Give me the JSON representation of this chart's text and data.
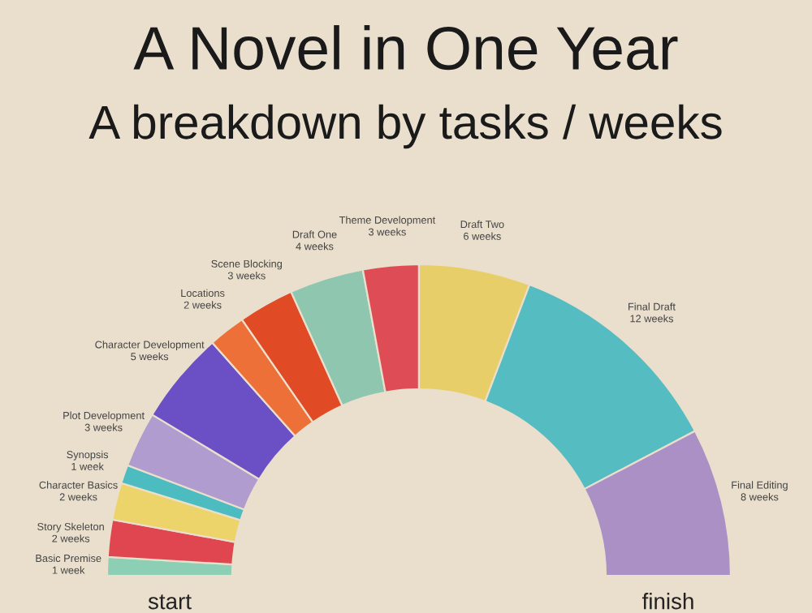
{
  "chart_data": {
    "type": "donut",
    "title": "A Novel in One Year",
    "subtitle": "A breakdown by tasks / weeks",
    "categories": [
      "Basic Premise",
      "Story Skeleton",
      "Character Basics",
      "Synopsis",
      "Plot Development",
      "Character Development",
      "Locations",
      "Scene Blocking",
      "Draft One",
      "Theme Development",
      "Draft Two",
      "Final Draft",
      "Final Editing"
    ],
    "values": [
      1,
      2,
      2,
      1,
      3,
      5,
      2,
      3,
      4,
      3,
      6,
      12,
      8
    ],
    "value_labels": [
      "1 week",
      "2 weeks",
      "2 weeks",
      "1 week",
      "3 weeks",
      "5 weeks",
      "2 weeks",
      "3 weeks",
      "4 weeks",
      "3 weeks",
      "6 weeks",
      "12 weeks",
      "8 weeks"
    ],
    "colors": [
      "#8ccfb5",
      "#e0464f",
      "#ecd36a",
      "#4dbcc0",
      "#b19ccf",
      "#6b4fc4",
      "#ec7038",
      "#e04b25",
      "#8fc6b0",
      "#de4d55",
      "#e8ce68",
      "#55bcc1",
      "#ab90c6"
    ],
    "annotations": [
      "start",
      "finish"
    ]
  }
}
